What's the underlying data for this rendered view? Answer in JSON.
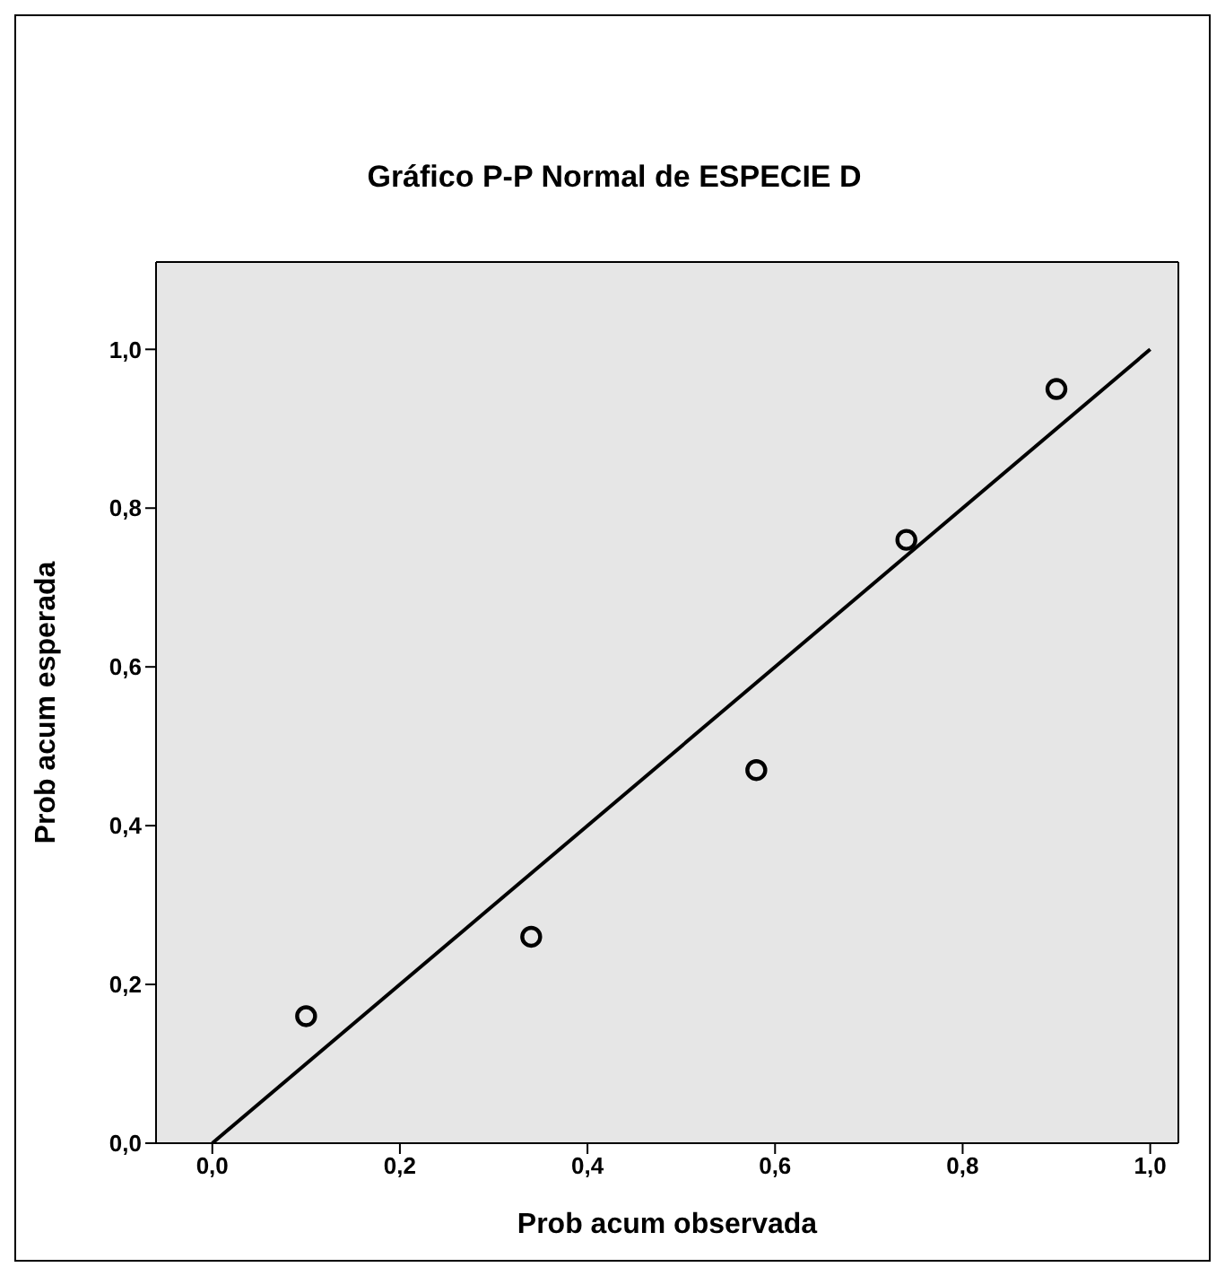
{
  "chart_data": {
    "type": "scatter",
    "title": "Gráfico P-P Normal de ESPECIE D",
    "xlabel": "Prob acum observada",
    "ylabel": "Prob acum esperada",
    "xlim": [
      -0.06,
      1.03
    ],
    "ylim": [
      0,
      1.11
    ],
    "xticks": [
      {
        "value": 0,
        "label": "0,0"
      },
      {
        "value": 0.2,
        "label": "0,2"
      },
      {
        "value": 0.4,
        "label": "0,4"
      },
      {
        "value": 0.6,
        "label": "0,6"
      },
      {
        "value": 0.8,
        "label": "0,8"
      },
      {
        "value": 1,
        "label": "1,0"
      }
    ],
    "yticks": [
      {
        "value": 0,
        "label": "0,0"
      },
      {
        "value": 0.2,
        "label": "0,2"
      },
      {
        "value": 0.4,
        "label": "0,4"
      },
      {
        "value": 0.6,
        "label": "0,6"
      },
      {
        "value": 0.8,
        "label": "0,8"
      },
      {
        "value": 1,
        "label": "1,0"
      }
    ],
    "grid": false,
    "legend": false,
    "series": [
      {
        "color": "#000000",
        "marker": "circle",
        "x": [
          0.1,
          0.34,
          0.58,
          0.74,
          0.9
        ],
        "values": [
          0.16,
          0.26,
          0.47,
          0.76,
          0.95
        ]
      },
      {
        "type": "line",
        "color": "#000000",
        "marker": "none",
        "line_style": "solid",
        "x": [
          0,
          1
        ],
        "values": [
          0,
          1
        ]
      }
    ]
  }
}
